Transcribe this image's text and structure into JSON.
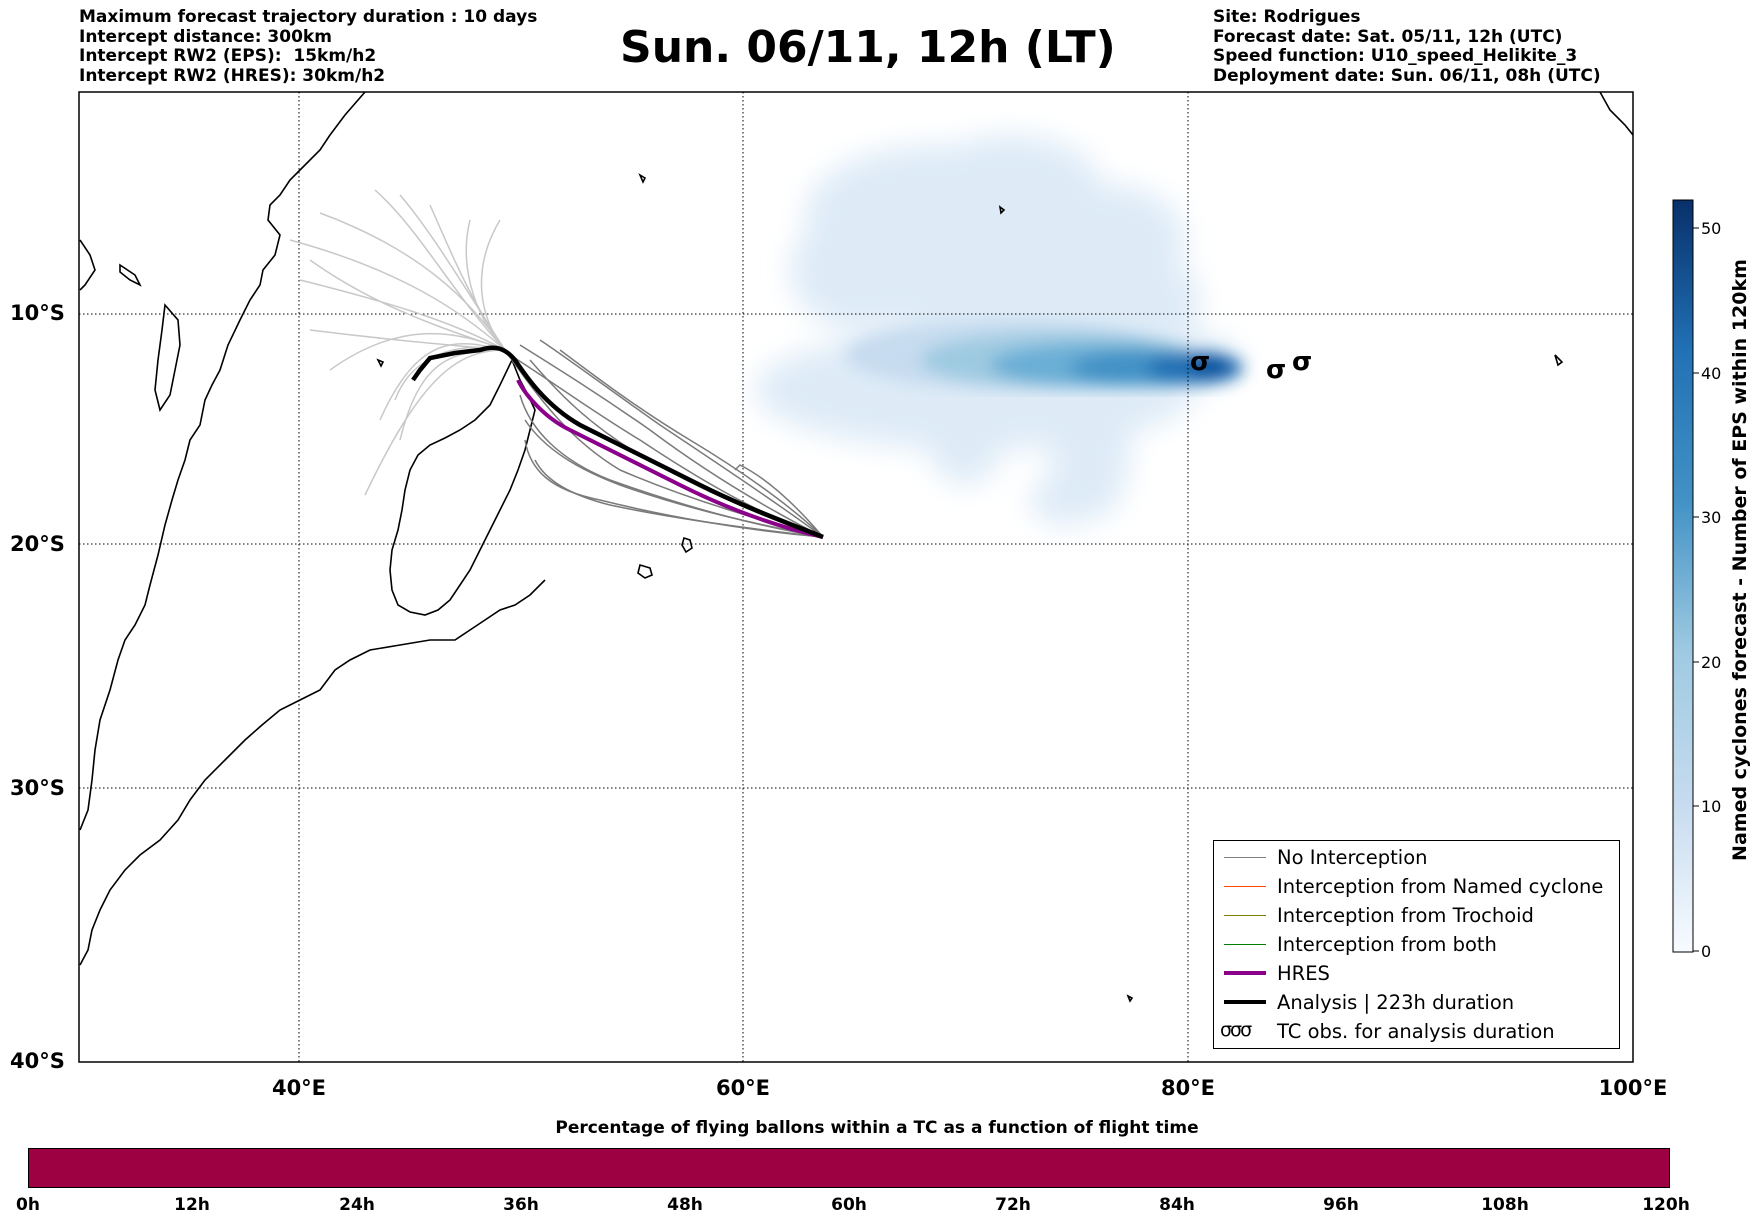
{
  "header": {
    "left_lines": [
      "Maximum forecast trajectory duration : 10 days",
      "Intercept distance: 300km",
      "Intercept RW2 (EPS):  15km/h2",
      "Intercept RW2 (HRES): 30km/h2"
    ],
    "right_lines": [
      "Site: Rodrigues",
      "Forecast date: Sat. 05/11, 12h (UTC)",
      "Speed function: U10_speed_Helikite_3",
      "Deployment date: Sun. 06/11, 08h (UTC)"
    ],
    "title": "Sun. 06/11, 12h (LT)"
  },
  "map": {
    "lat_labels": [
      "10°S",
      "20°S",
      "30°S",
      "40°S"
    ],
    "lon_labels": [
      "40°E",
      "60°E",
      "80°E",
      "100°E"
    ],
    "extent": {
      "lon_min": 30,
      "lon_max": 100,
      "lat_min": -40,
      "lat_max": 0
    },
    "projection": "mercator",
    "launch_site": {
      "name": "Rodrigues",
      "lon": 63.4,
      "lat": -19.7
    }
  },
  "colorbar": {
    "label": "Named cyclones forecast - Number of EPS within 120km",
    "ticks": [
      "0",
      "10",
      "20",
      "30",
      "40",
      "50"
    ],
    "min": 0,
    "max": 52,
    "colormap": "Blues"
  },
  "legend": {
    "items": [
      {
        "label": "No Interception",
        "color": "#808080",
        "style": "thin"
      },
      {
        "label": "Interception from Named cyclone",
        "color": "#ff4500",
        "style": "thin"
      },
      {
        "label": "Interception from Trochoid",
        "color": "#808000",
        "style": "thin"
      },
      {
        "label": "Interception from both",
        "color": "#008000",
        "style": "thin"
      },
      {
        "label": "HRES",
        "color": "#8b008b",
        "style": "thick"
      },
      {
        "label": "Analysis | 223h duration",
        "color": "#000000",
        "style": "thick"
      },
      {
        "label": "TC obs. for analysis duration",
        "glyph": "σσσ",
        "style": "glyph"
      }
    ]
  },
  "bottom_bar": {
    "title": "Percentage of flying ballons within a TC as a function of flight time",
    "ticks": [
      "0h",
      "12h",
      "24h",
      "36h",
      "48h",
      "60h",
      "72h",
      "84h",
      "96h",
      "108h",
      "120h"
    ],
    "fill_color": "#9e0142"
  },
  "tc_obs": {
    "symbol": "σ",
    "points": [
      {
        "lon": 80.7,
        "lat": -12.0
      },
      {
        "lon": 84.1,
        "lat": -12.6
      },
      {
        "lon": 85.3,
        "lat": -12.0
      }
    ]
  }
}
